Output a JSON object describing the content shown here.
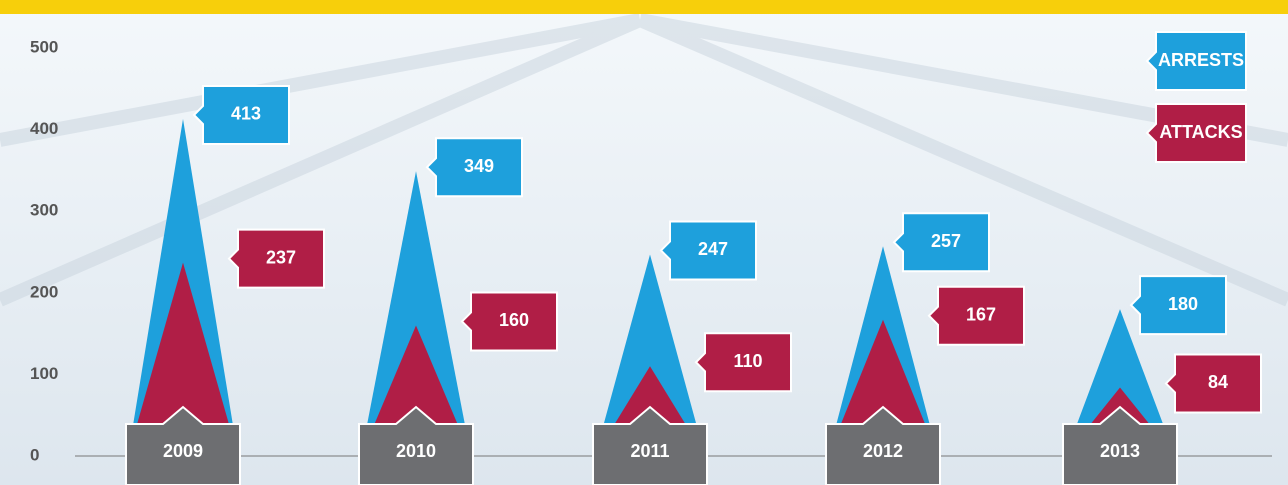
{
  "chart_data": {
    "type": "spike",
    "categories": [
      "2009",
      "2010",
      "2011",
      "2012",
      "2013"
    ],
    "series": [
      {
        "name": "ARRESTS",
        "color": "#1ea0dc",
        "values": [
          413,
          349,
          247,
          257,
          180
        ]
      },
      {
        "name": "ATTACKS",
        "color": "#b01e46",
        "values": [
          237,
          160,
          110,
          167,
          84
        ]
      }
    ],
    "ylim": [
      0,
      500
    ],
    "yticks": [
      0,
      100,
      200,
      300,
      400,
      500
    ]
  }
}
